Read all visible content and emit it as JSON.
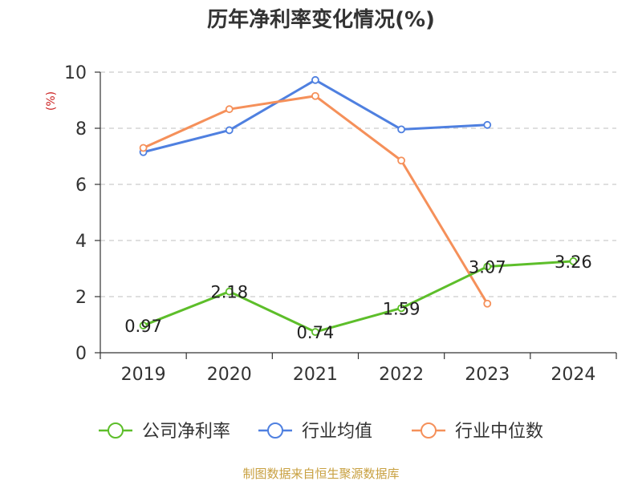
{
  "chart_data": {
    "type": "line",
    "title": "历年净利率变化情况(%)",
    "ylabel": "(%)",
    "xlabel": "",
    "categories": [
      "2019",
      "2020",
      "2021",
      "2022",
      "2023",
      "2024"
    ],
    "ylim": [
      0,
      10
    ],
    "yticks": [
      "0",
      "2",
      "4",
      "6",
      "8",
      "10"
    ],
    "grid": true,
    "legend_position": "bottom",
    "series": [
      {
        "name": "公司净利率",
        "color": "#5dbe2a",
        "values": [
          0.97,
          2.18,
          0.74,
          1.59,
          3.07,
          3.26
        ],
        "labels": [
          "0.97",
          "2.18",
          "0.74",
          "1.59",
          "3.07",
          "3.26"
        ]
      },
      {
        "name": "行业均值",
        "color": "#4f80e0",
        "values": [
          7.15,
          7.93,
          9.72,
          7.96,
          8.12,
          null
        ]
      },
      {
        "name": "行业中位数",
        "color": "#f5905a",
        "values": [
          7.3,
          8.68,
          9.15,
          6.85,
          1.75,
          null
        ]
      }
    ]
  },
  "colors": {
    "unit_label": "#cc2222",
    "source": "#c8a040",
    "axis": "#333333",
    "grid": "#cccccc"
  },
  "source": "制图数据来自恒生聚源数据库"
}
